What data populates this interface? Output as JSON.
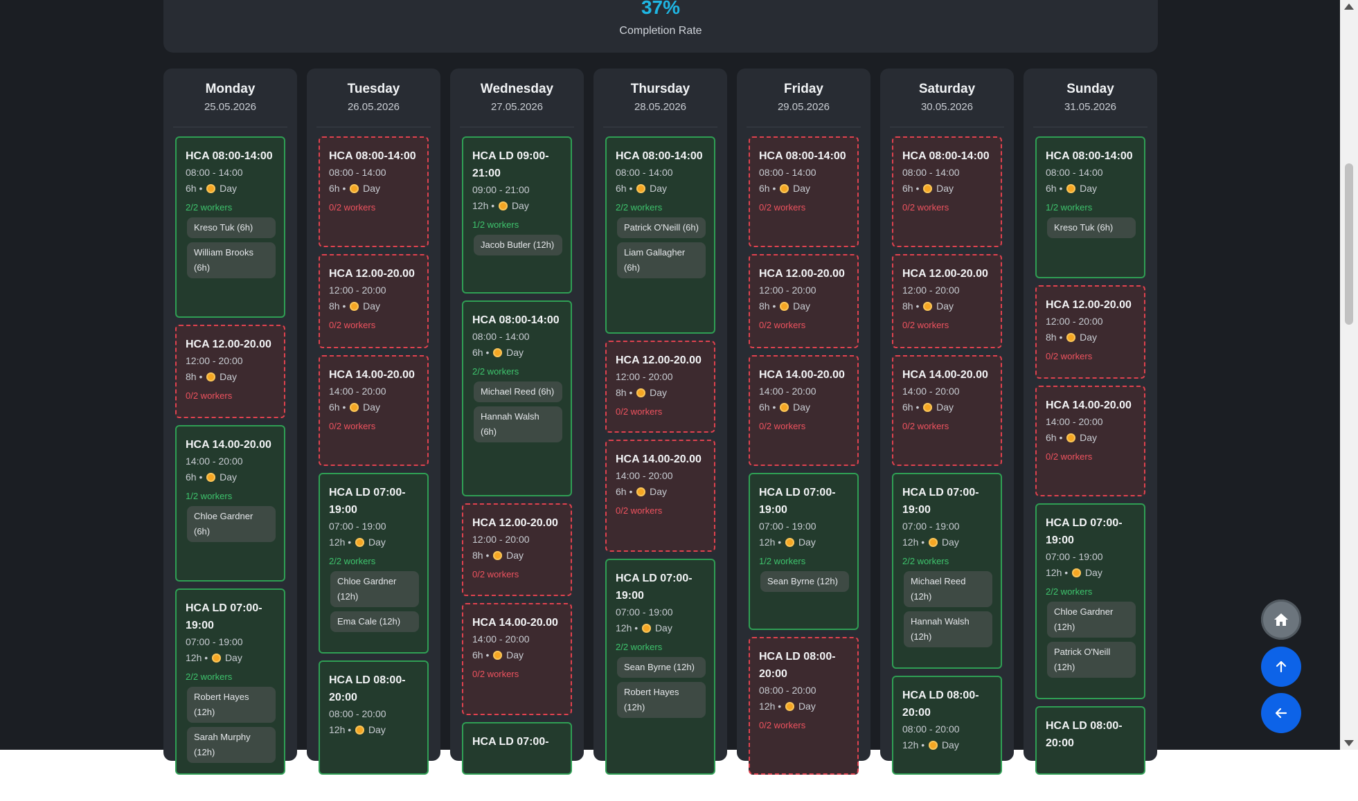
{
  "stats": {
    "value": "37%",
    "label": "Completion Rate"
  },
  "days": [
    {
      "name": "Monday",
      "date": "25.05.2026",
      "shifts": [
        {
          "title": "HCA 08:00-14:00",
          "time": "08:00 - 14:00",
          "hours": "6h",
          "period": "Day",
          "workers": "2/2 workers",
          "status": "ok",
          "assigned": [
            "Kreso Tuk (6h)",
            "William Brooks (6h)"
          ]
        },
        {
          "title": "HCA 12.00-20.00",
          "time": "12:00 - 20:00",
          "hours": "8h",
          "period": "Day",
          "workers": "0/2 workers",
          "status": "bad",
          "assigned": []
        },
        {
          "title": "HCA 14.00-20.00",
          "time": "14:00 - 20:00",
          "hours": "6h",
          "period": "Day",
          "workers": "1/2 workers",
          "status": "ok",
          "assigned": [
            "Chloe Gardner (6h)"
          ]
        },
        {
          "title": "HCA LD 07:00-19:00",
          "time": "07:00 - 19:00",
          "hours": "12h",
          "period": "Day",
          "workers": "2/2 workers",
          "status": "ok",
          "assigned": [
            "Robert Hayes (12h)",
            "Sarah Murphy (12h)"
          ]
        }
      ]
    },
    {
      "name": "Tuesday",
      "date": "26.05.2026",
      "shifts": [
        {
          "title": "HCA 08:00-14:00",
          "time": "08:00 - 14:00",
          "hours": "6h",
          "period": "Day",
          "workers": "0/2 workers",
          "status": "bad",
          "assigned": []
        },
        {
          "title": "HCA 12.00-20.00",
          "time": "12:00 - 20:00",
          "hours": "8h",
          "period": "Day",
          "workers": "0/2 workers",
          "status": "bad",
          "assigned": []
        },
        {
          "title": "HCA 14.00-20.00",
          "time": "14:00 - 20:00",
          "hours": "6h",
          "period": "Day",
          "workers": "0/2 workers",
          "status": "bad",
          "assigned": []
        },
        {
          "title": "HCA LD 07:00-19:00",
          "time": "07:00 - 19:00",
          "hours": "12h",
          "period": "Day",
          "workers": "2/2 workers",
          "status": "ok",
          "assigned": [
            "Chloe Gardner (12h)",
            "Ema Cale (12h)"
          ]
        },
        {
          "title": "HCA LD 08:00-20:00",
          "time": "08:00 - 20:00",
          "hours": "12h",
          "period": "Day",
          "workers": "",
          "status": "ok",
          "assigned": []
        }
      ]
    },
    {
      "name": "Wednesday",
      "date": "27.05.2026",
      "shifts": [
        {
          "title": "HCA LD 09:00-21:00",
          "time": "09:00 - 21:00",
          "hours": "12h",
          "period": "Day",
          "workers": "1/2 workers",
          "status": "ok",
          "assigned": [
            "Jacob Butler (12h)"
          ]
        },
        {
          "title": "HCA 08:00-14:00",
          "time": "08:00 - 14:00",
          "hours": "6h",
          "period": "Day",
          "workers": "2/2 workers",
          "status": "ok",
          "assigned": [
            "Michael Reed (6h)",
            "Hannah Walsh (6h)"
          ]
        },
        {
          "title": "HCA 12.00-20.00",
          "time": "12:00 - 20:00",
          "hours": "8h",
          "period": "Day",
          "workers": "0/2 workers",
          "status": "bad",
          "assigned": []
        },
        {
          "title": "HCA 14.00-20.00",
          "time": "14:00 - 20:00",
          "hours": "6h",
          "period": "Day",
          "workers": "0/2 workers",
          "status": "bad",
          "assigned": []
        },
        {
          "title": "HCA LD 07:00-",
          "time": "",
          "hours": "",
          "period": "",
          "workers": "",
          "status": "ok",
          "assigned": []
        }
      ]
    },
    {
      "name": "Thursday",
      "date": "28.05.2026",
      "shifts": [
        {
          "title": "HCA 08:00-14:00",
          "time": "08:00 - 14:00",
          "hours": "6h",
          "period": "Day",
          "workers": "2/2 workers",
          "status": "ok",
          "assigned": [
            "Patrick O'Neill (6h)",
            "Liam Gallagher (6h)"
          ]
        },
        {
          "title": "HCA 12.00-20.00",
          "time": "12:00 - 20:00",
          "hours": "8h",
          "period": "Day",
          "workers": "0/2 workers",
          "status": "bad",
          "assigned": []
        },
        {
          "title": "HCA 14.00-20.00",
          "time": "14:00 - 20:00",
          "hours": "6h",
          "period": "Day",
          "workers": "0/2 workers",
          "status": "bad",
          "assigned": []
        },
        {
          "title": "HCA LD 07:00-19:00",
          "time": "07:00 - 19:00",
          "hours": "12h",
          "period": "Day",
          "workers": "2/2 workers",
          "status": "ok",
          "assigned": [
            "Sean Byrne (12h)",
            "Robert Hayes (12h)"
          ]
        }
      ]
    },
    {
      "name": "Friday",
      "date": "29.05.2026",
      "shifts": [
        {
          "title": "HCA 08:00-14:00",
          "time": "08:00 - 14:00",
          "hours": "6h",
          "period": "Day",
          "workers": "0/2 workers",
          "status": "bad",
          "assigned": []
        },
        {
          "title": "HCA 12.00-20.00",
          "time": "12:00 - 20:00",
          "hours": "8h",
          "period": "Day",
          "workers": "0/2 workers",
          "status": "bad",
          "assigned": []
        },
        {
          "title": "HCA 14.00-20.00",
          "time": "14:00 - 20:00",
          "hours": "6h",
          "period": "Day",
          "workers": "0/2 workers",
          "status": "bad",
          "assigned": []
        },
        {
          "title": "HCA LD 07:00-19:00",
          "time": "07:00 - 19:00",
          "hours": "12h",
          "period": "Day",
          "workers": "1/2 workers",
          "status": "ok",
          "assigned": [
            "Sean Byrne (12h)"
          ]
        },
        {
          "title": "HCA LD 08:00-20:00",
          "time": "08:00 - 20:00",
          "hours": "12h",
          "period": "Day",
          "workers": "0/2 workers",
          "status": "bad",
          "assigned": []
        }
      ]
    },
    {
      "name": "Saturday",
      "date": "30.05.2026",
      "shifts": [
        {
          "title": "HCA 08:00-14:00",
          "time": "08:00 - 14:00",
          "hours": "6h",
          "period": "Day",
          "workers": "0/2 workers",
          "status": "bad",
          "assigned": []
        },
        {
          "title": "HCA 12.00-20.00",
          "time": "12:00 - 20:00",
          "hours": "8h",
          "period": "Day",
          "workers": "0/2 workers",
          "status": "bad",
          "assigned": []
        },
        {
          "title": "HCA 14.00-20.00",
          "time": "14:00 - 20:00",
          "hours": "6h",
          "period": "Day",
          "workers": "0/2 workers",
          "status": "bad",
          "assigned": []
        },
        {
          "title": "HCA LD 07:00-19:00",
          "time": "07:00 - 19:00",
          "hours": "12h",
          "period": "Day",
          "workers": "2/2 workers",
          "status": "ok",
          "assigned": [
            "Michael Reed (12h)",
            "Hannah Walsh (12h)"
          ]
        },
        {
          "title": "HCA LD 08:00-20:00",
          "time": "08:00 - 20:00",
          "hours": "12h",
          "period": "Day",
          "workers": "",
          "status": "ok",
          "assigned": []
        }
      ]
    },
    {
      "name": "Sunday",
      "date": "31.05.2026",
      "shifts": [
        {
          "title": "HCA 08:00-14:00",
          "time": "08:00 - 14:00",
          "hours": "6h",
          "period": "Day",
          "workers": "1/2 workers",
          "status": "ok",
          "assigned": [
            "Kreso Tuk (6h)"
          ]
        },
        {
          "title": "HCA 12.00-20.00",
          "time": "12:00 - 20:00",
          "hours": "8h",
          "period": "Day",
          "workers": "0/2 workers",
          "status": "bad",
          "assigned": []
        },
        {
          "title": "HCA 14.00-20.00",
          "time": "14:00 - 20:00",
          "hours": "6h",
          "period": "Day",
          "workers": "0/2 workers",
          "status": "bad",
          "assigned": []
        },
        {
          "title": "HCA LD 07:00-19:00",
          "time": "07:00 - 19:00",
          "hours": "12h",
          "period": "Day",
          "workers": "2/2 workers",
          "status": "ok",
          "assigned": [
            "Chloe Gardner (12h)",
            "Patrick O'Neill (12h)"
          ]
        },
        {
          "title": "HCA LD 08:00-20:00",
          "time": "",
          "hours": "",
          "period": "",
          "workers": "",
          "status": "ok",
          "assigned": []
        }
      ]
    }
  ],
  "fabs": {
    "home": "home-icon",
    "up": "arrow-up-icon",
    "back": "arrow-left-icon"
  },
  "colors": {
    "ok_border": "#2f9f54",
    "bad_border": "#e0424f",
    "accent": "#1fb6e3",
    "fab_blue": "#0d63e8"
  }
}
